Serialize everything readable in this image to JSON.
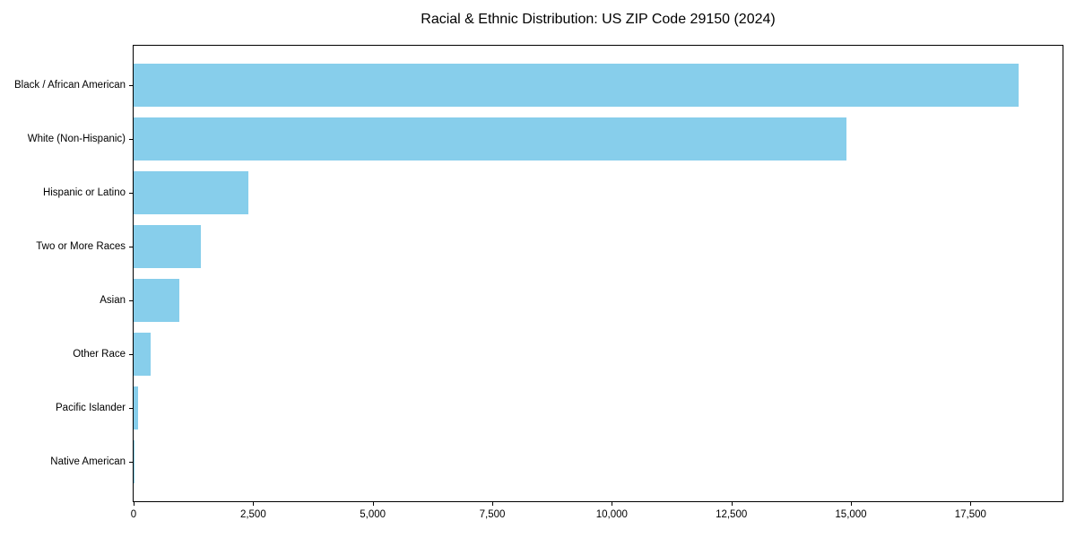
{
  "chart_data": {
    "type": "bar",
    "orientation": "horizontal",
    "title": "Racial & Ethnic Distribution: US ZIP Code 29150 (2024)",
    "categories": [
      "Black / African American",
      "White (Non-Hispanic)",
      "Hispanic or Latino",
      "Two or More Races",
      "Asian",
      "Other Race",
      "Pacific Islander",
      "Native American"
    ],
    "values": [
      18500,
      14900,
      2400,
      1400,
      950,
      350,
      100,
      10
    ],
    "xlabel": "",
    "ylabel": "",
    "xlim": [
      0,
      19425
    ],
    "x_ticks": [
      0,
      2500,
      5000,
      7500,
      10000,
      12500,
      15000,
      17500
    ],
    "x_tick_labels": [
      "0",
      "2,500",
      "5,000",
      "7,500",
      "10,000",
      "12,500",
      "15,000",
      "17,500"
    ],
    "grid": false,
    "legend": null,
    "bar_color": "#87CEEB",
    "text_color": "#000000",
    "spine_color": "#000000",
    "background_color": "#FFFFFF"
  }
}
